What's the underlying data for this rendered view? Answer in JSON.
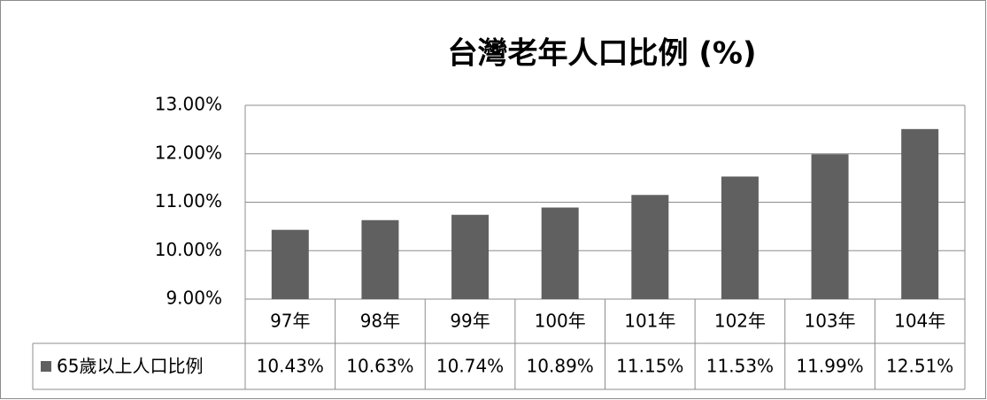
{
  "chart_data": {
    "type": "bar",
    "title": "台灣老年人口比例 (%)",
    "categories": [
      "97年",
      "98年",
      "99年",
      "100年",
      "101年",
      "102年",
      "103年",
      "104年"
    ],
    "series": [
      {
        "name": "65歲以上人口比例",
        "color": "#606060",
        "values": [
          10.43,
          10.63,
          10.74,
          10.89,
          11.15,
          11.53,
          11.99,
          12.51
        ],
        "value_labels": [
          "10.43%",
          "10.63%",
          "10.74%",
          "10.89%",
          "11.15%",
          "11.53%",
          "11.99%",
          "12.51%"
        ]
      }
    ],
    "ylim": [
      9,
      13
    ],
    "yticks": [
      {
        "value": 9,
        "label": "9.00%"
      },
      {
        "value": 10,
        "label": "10.00%"
      },
      {
        "value": 11,
        "label": "11.00%"
      },
      {
        "value": 12,
        "label": "12.00%"
      },
      {
        "value": 13,
        "label": "13.00%"
      }
    ],
    "grid": true
  }
}
